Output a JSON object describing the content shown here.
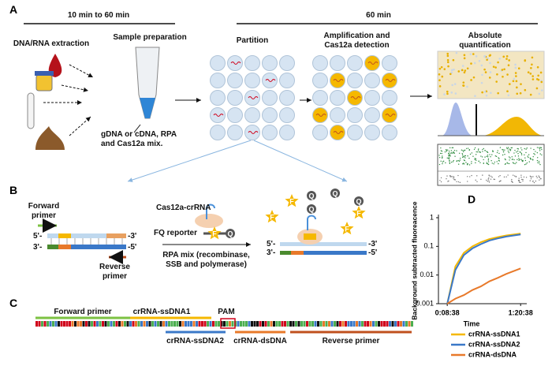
{
  "panel_a": {
    "label": "A",
    "time_left": "10 min to 60 min",
    "time_right": "60 min",
    "steps": [
      "DNA/RNA extraction",
      "Sample preparation",
      "Partition",
      "Amplification and Cas12a detection",
      "Absolute quantification"
    ],
    "sample_note": "gDNA or cDNA, RPA and Cas12a mix."
  },
  "panel_b": {
    "label": "B",
    "forward_primer": "Forward primer",
    "reverse_primer": "Reverse primer",
    "cas12a": "Cas12a-crRNA",
    "fq_reporter": "FQ reporter",
    "rpa_mix": "RPA mix (recombinase, SSB and polymerase)",
    "ends": [
      "5'-",
      "3'-",
      "-3'",
      "-5'"
    ],
    "fluorophore": "F",
    "quencher": "Q"
  },
  "panel_c": {
    "label": "C",
    "forward_primer": "Forward primer",
    "crrna_ssdna1": "crRNA-ssDNA1",
    "pam": "PAM",
    "crrna_ssdna2": "crRNA-ssDNA2",
    "crrna_dsdna": "crRNA-dsDNA",
    "reverse_primer": "Reverse primer"
  },
  "panel_d": {
    "type": "line",
    "label": "D",
    "ylabel": "Background subtracted fluoreacence",
    "xlabel": "Time",
    "x": [
      518,
      1000,
      1500,
      2000,
      2500,
      3000,
      3500,
      4000,
      4838
    ],
    "xlim": [
      0,
      5200
    ],
    "xticks": [
      {
        "value": 518,
        "label": "0:08:38"
      },
      {
        "value": 4838,
        "label": "1:20:38"
      }
    ],
    "ylim": [
      0.001,
      1
    ],
    "yticks": [
      0.001,
      0.01,
      0.1,
      1
    ],
    "log_y": true,
    "series": [
      {
        "name": "crRNA-ssDNA1",
        "color": "#f5b800",
        "values": [
          0.001,
          0.02,
          0.06,
          0.1,
          0.14,
          0.18,
          0.21,
          0.24,
          0.28
        ]
      },
      {
        "name": "crRNA-ssDNA2",
        "color": "#3a78c8",
        "values": [
          0.001,
          0.015,
          0.05,
          0.085,
          0.12,
          0.16,
          0.19,
          0.22,
          0.26
        ]
      },
      {
        "name": "crRNA-dsDNA",
        "color": "#e8792a",
        "values": [
          0.001,
          0.0015,
          0.002,
          0.003,
          0.004,
          0.006,
          0.008,
          0.011,
          0.017
        ]
      }
    ]
  }
}
